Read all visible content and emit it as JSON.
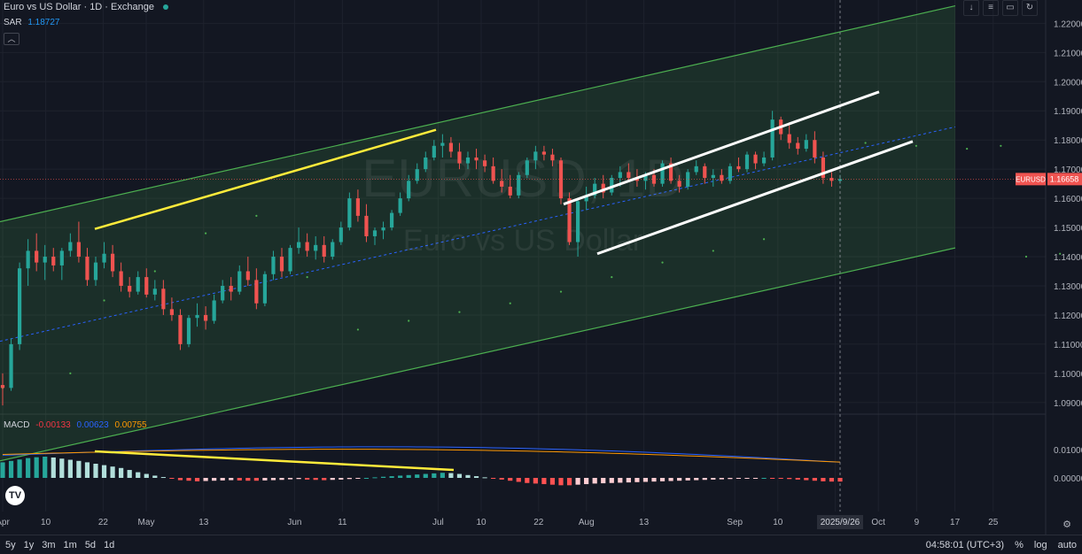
{
  "header": {
    "title": "Euro vs US Dollar · 1D · Exchange"
  },
  "watermark": {
    "symbol": "EURUSD, 1D",
    "name": "Euro vs US Dollar"
  },
  "sar": {
    "label": "SAR",
    "value": "1.18727"
  },
  "macd": {
    "label": "MACD",
    "hist": "-0.00133",
    "macd": "0.00623",
    "signal": "0.00755"
  },
  "price_label": {
    "symbol": "EURUSD",
    "price": "1.16658"
  },
  "top_tools": [
    "↓",
    "≡",
    "▭",
    "↻"
  ],
  "bottom": {
    "ranges": [
      "5y",
      "1y",
      "3m",
      "1m",
      "5d",
      "1d"
    ],
    "time": "04:58:01 (UTC+3)",
    "percent": "%",
    "log": "log",
    "auto": "auto"
  },
  "colors": {
    "up": "#26a69a",
    "down": "#ef5350",
    "channel": "#4caf50",
    "yellow": "#ffeb3b",
    "white": "#ffffff",
    "bg": "#131722"
  },
  "chart_data": {
    "type": "candlestick",
    "title": "Euro vs US Dollar · 1D · Exchange",
    "price_axis": {
      "ticks": [
        "1.22000",
        "1.21000",
        "1.20000",
        "1.19000",
        "1.18000",
        "1.17000",
        "1.16000",
        "1.15000",
        "1.14000",
        "1.13000",
        "1.12000",
        "1.11000",
        "1.10000",
        "1.09000"
      ],
      "ylim": [
        1.086,
        1.228
      ]
    },
    "macd_axis": {
      "ticks": [
        "0.01000",
        "0.00000"
      ]
    },
    "time_axis": {
      "ticks": [
        {
          "label": "Apr",
          "day": 0
        },
        {
          "label": "10",
          "day": 9
        },
        {
          "label": "22",
          "day": 21
        },
        {
          "label": "May",
          "day": 30
        },
        {
          "label": "13",
          "day": 42
        },
        {
          "label": "Jun",
          "day": 61
        },
        {
          "label": "11",
          "day": 71
        },
        {
          "label": "Jul",
          "day": 91
        },
        {
          "label": "10",
          "day": 100
        },
        {
          "label": "22",
          "day": 112
        },
        {
          "label": "Aug",
          "day": 122
        },
        {
          "label": "13",
          "day": 134
        },
        {
          "label": "Sep",
          "day": 153
        },
        {
          "label": "10",
          "day": 162
        },
        {
          "label": "22",
          "day": 174
        },
        {
          "label": "Oct",
          "day": 183
        },
        {
          "label": "9",
          "day": 191
        },
        {
          "label": "17",
          "day": 199
        },
        {
          "label": "25",
          "day": 207
        }
      ],
      "current": "2025/9/26"
    },
    "candles": [
      [
        1.096,
        1.1,
        1.089,
        1.095
      ],
      [
        1.095,
        1.112,
        1.094,
        1.11
      ],
      [
        1.11,
        1.138,
        1.108,
        1.136
      ],
      [
        1.136,
        1.146,
        1.13,
        1.142
      ],
      [
        1.142,
        1.148,
        1.135,
        1.138
      ],
      [
        1.138,
        1.144,
        1.132,
        1.14
      ],
      [
        1.14,
        1.143,
        1.135,
        1.137
      ],
      [
        1.137,
        1.143,
        1.132,
        1.142
      ],
      [
        1.142,
        1.148,
        1.14,
        1.145
      ],
      [
        1.145,
        1.152,
        1.138,
        1.14
      ],
      [
        1.14,
        1.143,
        1.13,
        1.132
      ],
      [
        1.132,
        1.14,
        1.13,
        1.138
      ],
      [
        1.138,
        1.145,
        1.136,
        1.141
      ],
      [
        1.141,
        1.144,
        1.133,
        1.135
      ],
      [
        1.135,
        1.138,
        1.128,
        1.13
      ],
      [
        1.13,
        1.133,
        1.126,
        1.128
      ],
      [
        1.128,
        1.135,
        1.127,
        1.133
      ],
      [
        1.133,
        1.136,
        1.126,
        1.127
      ],
      [
        1.127,
        1.132,
        1.125,
        1.129
      ],
      [
        1.129,
        1.132,
        1.12,
        1.122
      ],
      [
        1.122,
        1.126,
        1.118,
        1.12
      ],
      [
        1.12,
        1.122,
        1.108,
        1.11
      ],
      [
        1.11,
        1.12,
        1.109,
        1.119
      ],
      [
        1.119,
        1.124,
        1.116,
        1.12
      ],
      [
        1.12,
        1.123,
        1.115,
        1.118
      ],
      [
        1.118,
        1.127,
        1.117,
        1.125
      ],
      [
        1.125,
        1.132,
        1.124,
        1.13
      ],
      [
        1.13,
        1.133,
        1.125,
        1.128
      ],
      [
        1.128,
        1.137,
        1.127,
        1.135
      ],
      [
        1.135,
        1.14,
        1.13,
        1.132
      ],
      [
        1.132,
        1.136,
        1.122,
        1.124
      ],
      [
        1.124,
        1.135,
        1.123,
        1.134
      ],
      [
        1.134,
        1.142,
        1.132,
        1.14
      ],
      [
        1.14,
        1.143,
        1.133,
        1.135
      ],
      [
        1.135,
        1.144,
        1.134,
        1.143
      ],
      [
        1.143,
        1.15,
        1.141,
        1.145
      ],
      [
        1.145,
        1.148,
        1.14,
        1.142
      ],
      [
        1.142,
        1.147,
        1.139,
        1.144
      ],
      [
        1.144,
        1.147,
        1.138,
        1.14
      ],
      [
        1.14,
        1.146,
        1.139,
        1.145
      ],
      [
        1.145,
        1.152,
        1.144,
        1.15
      ],
      [
        1.15,
        1.162,
        1.149,
        1.16
      ],
      [
        1.16,
        1.163,
        1.152,
        1.154
      ],
      [
        1.154,
        1.158,
        1.145,
        1.147
      ],
      [
        1.147,
        1.15,
        1.144,
        1.149
      ],
      [
        1.149,
        1.152,
        1.146,
        1.15
      ],
      [
        1.15,
        1.156,
        1.149,
        1.155
      ],
      [
        1.155,
        1.162,
        1.154,
        1.16
      ],
      [
        1.16,
        1.168,
        1.159,
        1.166
      ],
      [
        1.166,
        1.172,
        1.165,
        1.17
      ],
      [
        1.17,
        1.176,
        1.169,
        1.174
      ],
      [
        1.174,
        1.18,
        1.173,
        1.178
      ],
      [
        1.178,
        1.182,
        1.174,
        1.179
      ],
      [
        1.179,
        1.181,
        1.174,
        1.176
      ],
      [
        1.176,
        1.179,
        1.17,
        1.172
      ],
      [
        1.172,
        1.176,
        1.17,
        1.174
      ],
      [
        1.174,
        1.177,
        1.17,
        1.173
      ],
      [
        1.173,
        1.175,
        1.169,
        1.171
      ],
      [
        1.171,
        1.174,
        1.165,
        1.166
      ],
      [
        1.166,
        1.17,
        1.162,
        1.164
      ],
      [
        1.164,
        1.168,
        1.16,
        1.161
      ],
      [
        1.161,
        1.169,
        1.16,
        1.168
      ],
      [
        1.168,
        1.174,
        1.167,
        1.173
      ],
      [
        1.173,
        1.178,
        1.17,
        1.176
      ],
      [
        1.176,
        1.178,
        1.173,
        1.175
      ],
      [
        1.175,
        1.177,
        1.171,
        1.173
      ],
      [
        1.173,
        1.174,
        1.158,
        1.16
      ],
      [
        1.16,
        1.162,
        1.144,
        1.145
      ],
      [
        1.145,
        1.16,
        1.14,
        1.159
      ],
      [
        1.159,
        1.164,
        1.156,
        1.161
      ],
      [
        1.161,
        1.167,
        1.16,
        1.165
      ],
      [
        1.165,
        1.168,
        1.16,
        1.162
      ],
      [
        1.162,
        1.168,
        1.161,
        1.167
      ],
      [
        1.167,
        1.171,
        1.164,
        1.169
      ],
      [
        1.169,
        1.172,
        1.166,
        1.167
      ],
      [
        1.167,
        1.17,
        1.164,
        1.166
      ],
      [
        1.166,
        1.169,
        1.163,
        1.168
      ],
      [
        1.168,
        1.17,
        1.164,
        1.165
      ],
      [
        1.165,
        1.173,
        1.164,
        1.172
      ],
      [
        1.172,
        1.174,
        1.165,
        1.166
      ],
      [
        1.166,
        1.168,
        1.162,
        1.164
      ],
      [
        1.164,
        1.17,
        1.163,
        1.169
      ],
      [
        1.169,
        1.173,
        1.168,
        1.171
      ],
      [
        1.171,
        1.172,
        1.165,
        1.167
      ],
      [
        1.167,
        1.17,
        1.164,
        1.168
      ],
      [
        1.168,
        1.17,
        1.165,
        1.166
      ],
      [
        1.166,
        1.172,
        1.165,
        1.171
      ],
      [
        1.171,
        1.174,
        1.169,
        1.17
      ],
      [
        1.17,
        1.176,
        1.169,
        1.175
      ],
      [
        1.175,
        1.176,
        1.17,
        1.172
      ],
      [
        1.172,
        1.176,
        1.171,
        1.174
      ],
      [
        1.174,
        1.19,
        1.173,
        1.187
      ],
      [
        1.187,
        1.188,
        1.18,
        1.182
      ],
      [
        1.182,
        1.185,
        1.177,
        1.179
      ],
      [
        1.179,
        1.181,
        1.175,
        1.177
      ],
      [
        1.177,
        1.182,
        1.176,
        1.18
      ],
      [
        1.18,
        1.183,
        1.172,
        1.174
      ],
      [
        1.174,
        1.176,
        1.165,
        1.167
      ],
      [
        1.167,
        1.169,
        1.164,
        1.166
      ],
      [
        1.166,
        1.168,
        1.165,
        1.1666
      ]
    ],
    "macd_histogram": [
      0.0055,
      0.006,
      0.0065,
      0.007,
      0.0073,
      0.0075,
      0.0072,
      0.0068,
      0.0064,
      0.006,
      0.0055,
      0.005,
      0.0045,
      0.004,
      0.0035,
      0.0028,
      0.002,
      0.0014,
      0.0008,
      0.0003,
      -0.0003,
      -0.0008,
      -0.001,
      -0.0012,
      -0.0011,
      -0.001,
      -0.0009,
      -0.0008,
      -0.0009,
      -0.001,
      -0.001,
      -0.0009,
      -0.0008,
      -0.0007,
      -0.0005,
      -0.0004,
      -0.0006,
      -0.0007,
      -0.0008,
      -0.0007,
      -0.0006,
      -0.0004,
      -0.0002,
      0.0,
      0.0002,
      0.0004,
      0.0006,
      0.0008,
      0.001,
      0.0012,
      0.0014,
      0.0016,
      0.0018,
      0.0017,
      0.0014,
      0.001,
      0.0006,
      0.0002,
      -0.0002,
      -0.0006,
      -0.001,
      -0.0014,
      -0.0018,
      -0.002,
      -0.0022,
      -0.0024,
      -0.0026,
      -0.0026,
      -0.0024,
      -0.0022,
      -0.002,
      -0.0019,
      -0.0018,
      -0.0017,
      -0.0016,
      -0.0015,
      -0.0014,
      -0.0013,
      -0.0012,
      -0.0011,
      -0.001,
      -0.0009,
      -0.0008,
      -0.0007,
      -0.0006,
      -0.0005,
      -0.0004,
      -0.0003,
      -0.0002,
      -0.0001,
      0.0,
      -0.0001,
      -0.0002,
      -0.0004,
      -0.0006,
      -0.0008,
      -0.001,
      -0.0012,
      -0.0013,
      -0.0013
    ],
    "sar_points": [
      [
        0,
        1.095
      ],
      [
        8,
        1.1
      ],
      [
        12,
        1.125
      ],
      [
        18,
        1.135
      ],
      [
        24,
        1.148
      ],
      [
        30,
        1.154
      ],
      [
        36,
        1.133
      ],
      [
        42,
        1.115
      ],
      [
        48,
        1.118
      ],
      [
        54,
        1.121
      ],
      [
        60,
        1.124
      ],
      [
        66,
        1.128
      ],
      [
        72,
        1.133
      ],
      [
        78,
        1.138
      ],
      [
        84,
        1.142
      ],
      [
        90,
        1.146
      ],
      [
        96,
        1.177
      ],
      [
        102,
        1.179
      ],
      [
        108,
        1.178
      ],
      [
        114,
        1.177
      ],
      [
        118,
        1.178
      ],
      [
        121,
        1.14
      ],
      [
        125,
        1.141
      ],
      [
        130,
        1.144
      ],
      [
        138,
        1.15
      ],
      [
        146,
        1.156
      ],
      [
        154,
        1.16
      ],
      [
        160,
        1.165
      ],
      [
        166,
        1.17
      ],
      [
        172,
        1.187
      ],
      [
        176,
        1.188
      ]
    ]
  }
}
